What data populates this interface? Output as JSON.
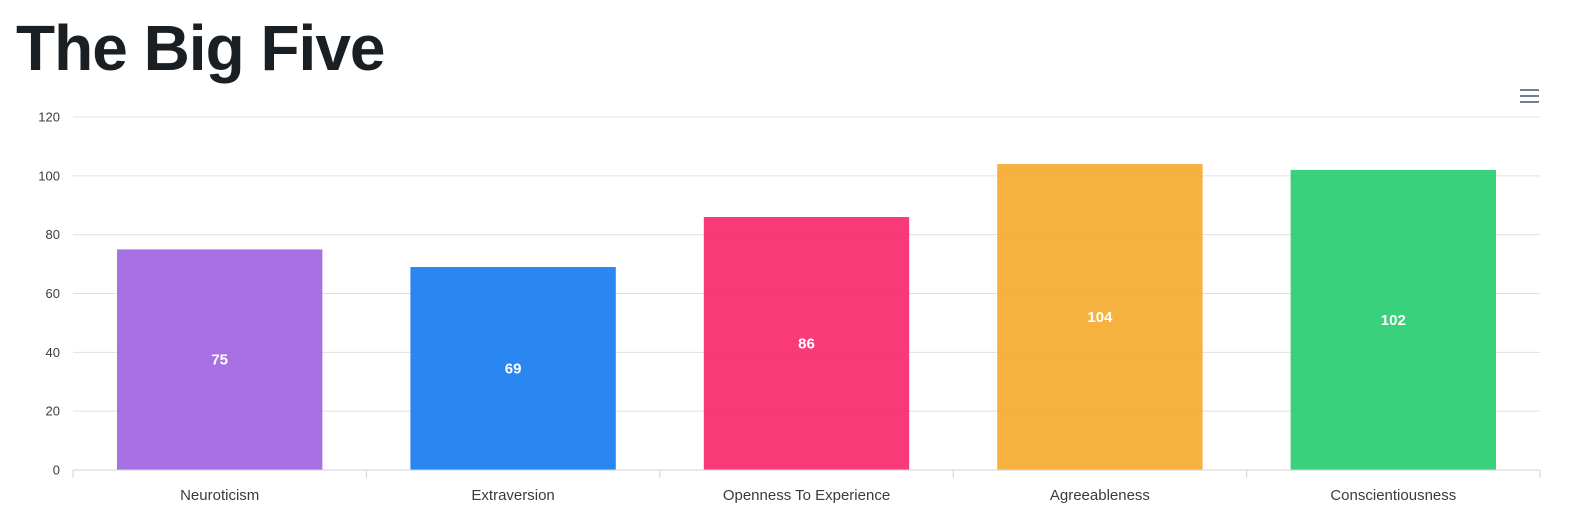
{
  "title": "The Big Five",
  "menu_icon": "hamburger-menu-icon",
  "chart_data": {
    "type": "bar",
    "title": "The Big Five",
    "xlabel": "",
    "ylabel": "",
    "categories": [
      "Neuroticism",
      "Extraversion",
      "Openness To Experience",
      "Agreeableness",
      "Conscientiousness"
    ],
    "values": [
      75,
      69,
      86,
      104,
      102
    ],
    "colors": [
      "#9b5de0",
      "#0d75ef",
      "#f71f66",
      "#f5a623",
      "#1ecb6a"
    ],
    "ylim": [
      0,
      120
    ],
    "yticks": [
      0,
      20,
      40,
      60,
      80,
      100,
      120
    ],
    "grid": true,
    "legend": "none",
    "data_labels": true
  }
}
